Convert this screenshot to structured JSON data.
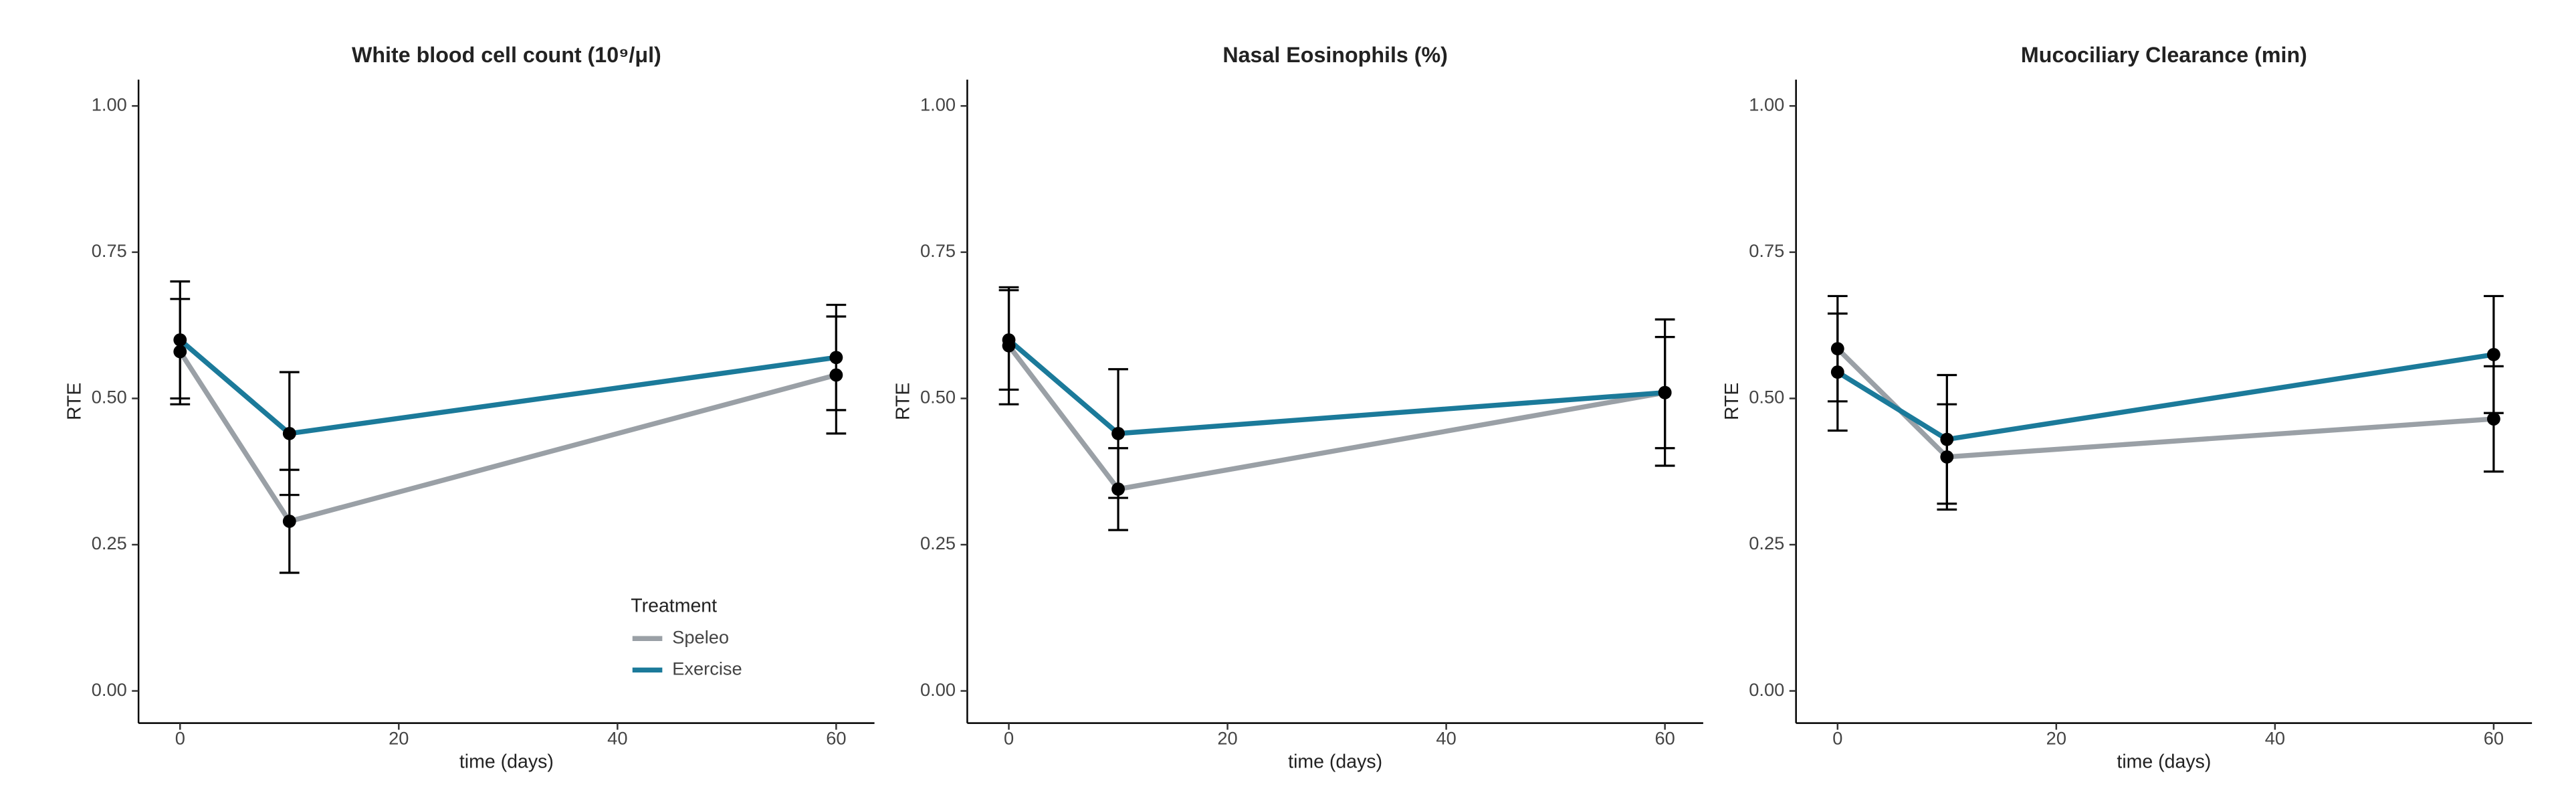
{
  "chart_data": [
    {
      "type": "line",
      "title": "White blood cell count (10⁹/μl)",
      "xlabel": "time (days)",
      "ylabel": "RTE",
      "x": [
        0,
        10,
        60
      ],
      "xlim": [
        -3.8,
        63.5
      ],
      "xticks": [
        0,
        20,
        40,
        60
      ],
      "ylim": [
        -0.055,
        1.045
      ],
      "yticks": [
        {
          "value": 0,
          "label": "0.00"
        },
        {
          "value": 0.25,
          "label": "0.25"
        },
        {
          "value": 0.5,
          "label": "0.50"
        },
        {
          "value": 0.75,
          "label": "0.75"
        },
        {
          "value": 1,
          "label": "1.00"
        }
      ],
      "legend_title": "Treatment",
      "series": [
        {
          "name": "Speleo",
          "color": "#9aa0a6",
          "values": [
            0.58,
            0.29,
            0.54
          ],
          "errors": [
            0.09,
            0.088,
            0.1
          ]
        },
        {
          "name": "Exercise",
          "color": "#1b7a9a",
          "values": [
            0.6,
            0.44,
            0.57
          ],
          "errors": [
            0.1,
            0.105,
            0.09
          ]
        }
      ]
    },
    {
      "type": "line",
      "title": "Nasal Eosinophils (%)",
      "xlabel": "time (days)",
      "ylabel": "RTE",
      "x": [
        0,
        10,
        60
      ],
      "xlim": [
        -3.8,
        63.5
      ],
      "xticks": [
        0,
        20,
        40,
        60
      ],
      "ylim": [
        -0.055,
        1.045
      ],
      "yticks": [
        {
          "value": 0,
          "label": "0.00"
        },
        {
          "value": 0.25,
          "label": "0.25"
        },
        {
          "value": 0.5,
          "label": "0.50"
        },
        {
          "value": 0.75,
          "label": "0.75"
        },
        {
          "value": 1,
          "label": "1.00"
        }
      ],
      "series": [
        {
          "color": "#9aa0a6",
          "values": [
            0.59,
            0.345,
            0.51
          ],
          "errors": [
            0.1,
            0.07,
            0.125
          ]
        },
        {
          "color": "#1b7a9a",
          "values": [
            0.6,
            0.44,
            0.51
          ],
          "errors": [
            0.085,
            0.11,
            0.095
          ]
        }
      ]
    },
    {
      "type": "line",
      "title": "Mucociliary Clearance (min)",
      "xlabel": "time (days)",
      "ylabel": "RTE",
      "x": [
        0,
        10,
        60
      ],
      "xlim": [
        -3.8,
        63.5
      ],
      "xticks": [
        0,
        20,
        40,
        60
      ],
      "ylim": [
        -0.055,
        1.045
      ],
      "yticks": [
        {
          "value": 0,
          "label": "0.00"
        },
        {
          "value": 0.25,
          "label": "0.25"
        },
        {
          "value": 0.5,
          "label": "0.50"
        },
        {
          "value": 0.75,
          "label": "0.75"
        },
        {
          "value": 1,
          "label": "1.00"
        }
      ],
      "series": [
        {
          "color": "#9aa0a6",
          "values": [
            0.585,
            0.4,
            0.465
          ],
          "errors": [
            0.09,
            0.09,
            0.09
          ]
        },
        {
          "color": "#1b7a9a",
          "values": [
            0.545,
            0.43,
            0.575
          ],
          "errors": [
            0.1,
            0.11,
            0.1
          ]
        }
      ]
    }
  ]
}
